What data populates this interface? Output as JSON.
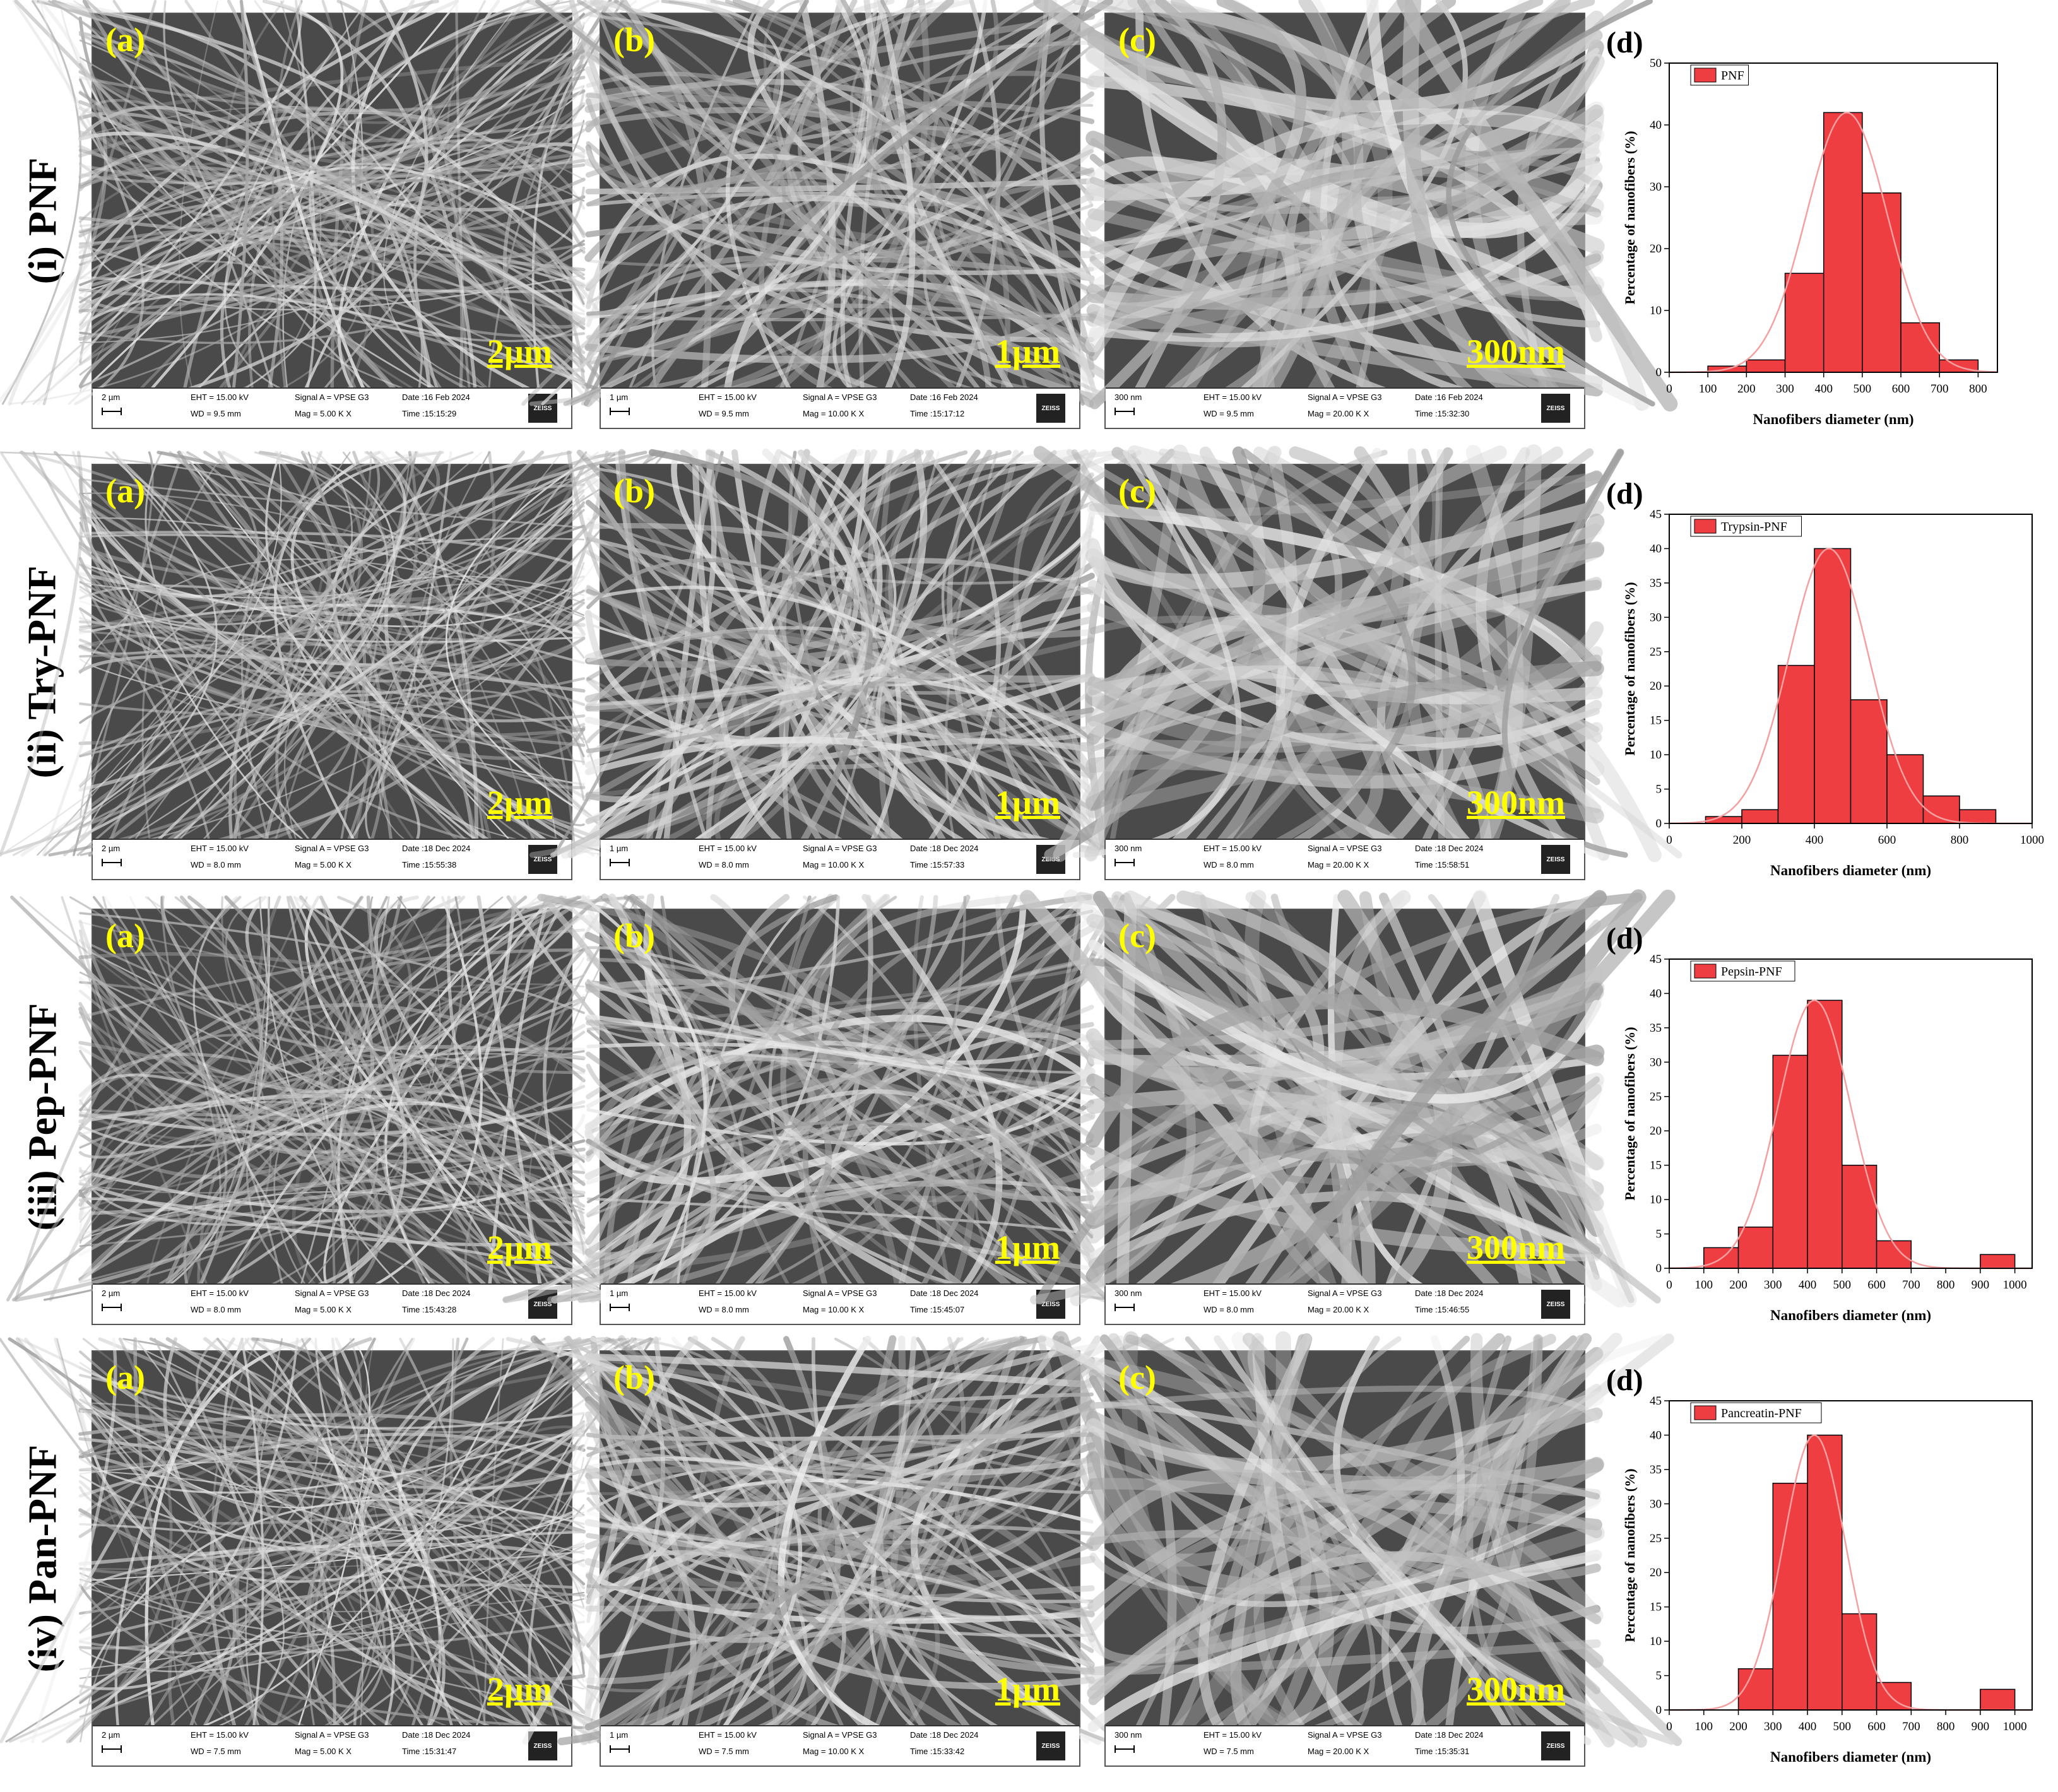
{
  "rows": [
    {
      "label": "(i) PNF",
      "panels": [
        {
          "letter": "(a)",
          "scale": "2µm",
          "bar": "2 µm",
          "eht": "EHT = 15.00 kV",
          "wd": "WD = 9.5 mm",
          "signal": "Signal A = VPSE G3",
          "mag": "Mag =  5.00 K X",
          "date": "Date :16 Feb 2024",
          "time": "Time :15:15:29",
          "logo": "ZEISS"
        },
        {
          "letter": "(b)",
          "scale": "1µm",
          "bar": "1 µm",
          "eht": "EHT = 15.00 kV",
          "wd": "WD = 9.5 mm",
          "signal": "Signal A = VPSE G3",
          "mag": "Mag =  10.00 K X",
          "date": "Date :16 Feb 2024",
          "time": "Time :15:17:12",
          "logo": "ZEISS"
        },
        {
          "letter": "(c)",
          "scale": "300nm",
          "bar": "300 nm",
          "eht": "EHT = 15.00 kV",
          "wd": "WD = 9.5 mm",
          "signal": "Signal A = VPSE G3",
          "mag": "Mag =  20.00 K X",
          "date": "Date :16 Feb 2024",
          "time": "Time :15:32:30",
          "logo": "ZEISS"
        }
      ]
    },
    {
      "label": "(ii) Try-PNF",
      "panels": [
        {
          "letter": "(a)",
          "scale": "2µm",
          "bar": "2 µm",
          "eht": "EHT = 15.00 kV",
          "wd": "WD = 8.0 mm",
          "signal": "Signal A = VPSE G3",
          "mag": "Mag =  5.00 K X",
          "date": "Date :18 Dec 2024",
          "time": "Time :15:55:38",
          "logo": "ZEISS"
        },
        {
          "letter": "(b)",
          "scale": "1µm",
          "bar": "1 µm",
          "eht": "EHT = 15.00 kV",
          "wd": "WD = 8.0 mm",
          "signal": "Signal A = VPSE G3",
          "mag": "Mag =  10.00 K X",
          "date": "Date :18 Dec 2024",
          "time": "Time :15:57:33",
          "logo": "ZEISS"
        },
        {
          "letter": "(c)",
          "scale": "300nm",
          "bar": "300 nm",
          "eht": "EHT = 15.00 kV",
          "wd": "WD = 8.0 mm",
          "signal": "Signal A = VPSE G3",
          "mag": "Mag =  20.00 K X",
          "date": "Date :18 Dec 2024",
          "time": "Time :15:58:51",
          "logo": "ZEISS"
        }
      ]
    },
    {
      "label": "(iii) Pep-PNF",
      "panels": [
        {
          "letter": "(a)",
          "scale": "2µm",
          "bar": "2 µm",
          "eht": "EHT = 15.00 kV",
          "wd": "WD = 8.0 mm",
          "signal": "Signal A = VPSE G3",
          "mag": "Mag =  5.00 K X",
          "date": "Date :18 Dec 2024",
          "time": "Time :15:43:28",
          "logo": "ZEISS"
        },
        {
          "letter": "(b)",
          "scale": "1µm",
          "bar": "1 µm",
          "eht": "EHT = 15.00 kV",
          "wd": "WD = 8.0 mm",
          "signal": "Signal A = VPSE G3",
          "mag": "Mag =  10.00 K X",
          "date": "Date :18 Dec 2024",
          "time": "Time :15:45:07",
          "logo": "ZEISS"
        },
        {
          "letter": "(c)",
          "scale": "300nm",
          "bar": "300 nm",
          "eht": "EHT = 15.00 kV",
          "wd": "WD = 8.0 mm",
          "signal": "Signal A = VPSE G3",
          "mag": "Mag =  20.00 K X",
          "date": "Date :18 Dec 2024",
          "time": "Time :15:46:55",
          "logo": "ZEISS"
        }
      ]
    },
    {
      "label": "(iv) Pan-PNF",
      "panels": [
        {
          "letter": "(a)",
          "scale": "2µm",
          "bar": "2 µm",
          "eht": "EHT = 15.00 kV",
          "wd": "WD = 7.5 mm",
          "signal": "Signal A = VPSE G3",
          "mag": "Mag =  5.00 K X",
          "date": "Date :18 Dec 2024",
          "time": "Time :15:31:47",
          "logo": "ZEISS"
        },
        {
          "letter": "(b)",
          "scale": "1µm",
          "bar": "1 µm",
          "eht": "EHT = 15.00 kV",
          "wd": "WD = 7.5 mm",
          "signal": "Signal A = VPSE G3",
          "mag": "Mag =  10.00 K X",
          "date": "Date :18 Dec 2024",
          "time": "Time :15:33:42",
          "logo": "ZEISS"
        },
        {
          "letter": "(c)",
          "scale": "300nm",
          "bar": "300 nm",
          "eht": "EHT = 15.00 kV",
          "wd": "WD = 7.5 mm",
          "signal": "Signal A = VPSE G3",
          "mag": "Mag =  20.00 K X",
          "date": "Date :18 Dec 2024",
          "time": "Time :15:35:31",
          "logo": "ZEISS"
        }
      ]
    }
  ],
  "colors": {
    "bar_fill": "#ef3e42",
    "fit_line": "#f4a0a0",
    "sem_text": "#ffff00"
  },
  "chart_data": [
    {
      "type": "bar",
      "panel": "(d)",
      "legend": "PNF",
      "legend_position": "top-left",
      "xlabel": "Nanofibers diameter (nm)",
      "ylabel": "Percentage of nanofibers (%)",
      "xlim": [
        0,
        850
      ],
      "ylim": [
        0,
        50
      ],
      "xticks": [
        0,
        100,
        200,
        300,
        400,
        500,
        600,
        700,
        800
      ],
      "yticks": [
        0,
        10,
        20,
        30,
        40,
        50
      ],
      "bin_edges": [
        100,
        200,
        300,
        400,
        500,
        600,
        700,
        800
      ],
      "values": [
        1,
        2,
        16,
        42,
        29,
        8,
        2
      ],
      "fit": {
        "type": "gaussian",
        "mean": 460,
        "sd": 105
      }
    },
    {
      "type": "bar",
      "panel": "(d)",
      "legend": "Trypsin-PNF",
      "legend_position": "top-left",
      "xlabel": "Nanofibers diameter (nm)",
      "ylabel": "Percentage of nanofibers (%)",
      "xlim": [
        0,
        1000
      ],
      "ylim": [
        0,
        45
      ],
      "xticks": [
        0,
        200,
        400,
        600,
        800,
        1000
      ],
      "yticks": [
        0,
        5,
        10,
        15,
        20,
        25,
        30,
        35,
        40,
        45
      ],
      "bin_edges": [
        100,
        200,
        300,
        400,
        500,
        600,
        700,
        800,
        900
      ],
      "values": [
        1,
        2,
        23,
        40,
        18,
        10,
        4,
        2
      ],
      "fit": {
        "type": "gaussian",
        "mean": 440,
        "sd": 110
      }
    },
    {
      "type": "bar",
      "panel": "(d)",
      "legend": "Pepsin-PNF",
      "legend_position": "top-left",
      "xlabel": "Nanofibers diameter (nm)",
      "ylabel": "Percentage of nanofibers (%)",
      "xlim": [
        0,
        1050
      ],
      "ylim": [
        0,
        45
      ],
      "xticks": [
        0,
        100,
        200,
        300,
        400,
        500,
        600,
        700,
        800,
        900,
        1000
      ],
      "yticks": [
        0,
        5,
        10,
        15,
        20,
        25,
        30,
        35,
        40,
        45
      ],
      "bin_edges": [
        100,
        200,
        300,
        400,
        500,
        600,
        700,
        800,
        900,
        1000
      ],
      "values": [
        3,
        6,
        31,
        39,
        15,
        4,
        0,
        0,
        2
      ],
      "fit": {
        "type": "gaussian",
        "mean": 420,
        "sd": 105
      }
    },
    {
      "type": "bar",
      "panel": "(d)",
      "legend": "Pancreatin-PNF",
      "legend_position": "top-left",
      "xlabel": "Nanofibers diameter (nm)",
      "ylabel": "Percentage of nanofibers (%)",
      "xlim": [
        0,
        1050
      ],
      "ylim": [
        0,
        45
      ],
      "xticks": [
        0,
        100,
        200,
        300,
        400,
        500,
        600,
        700,
        800,
        900,
        1000
      ],
      "yticks": [
        0,
        5,
        10,
        15,
        20,
        25,
        30,
        35,
        40,
        45
      ],
      "bin_edges": [
        200,
        300,
        400,
        500,
        600,
        700,
        800,
        900,
        1000
      ],
      "values": [
        6,
        33,
        40,
        14,
        4,
        0,
        0,
        3
      ],
      "fit": {
        "type": "gaussian",
        "mean": 420,
        "sd": 90
      }
    }
  ]
}
